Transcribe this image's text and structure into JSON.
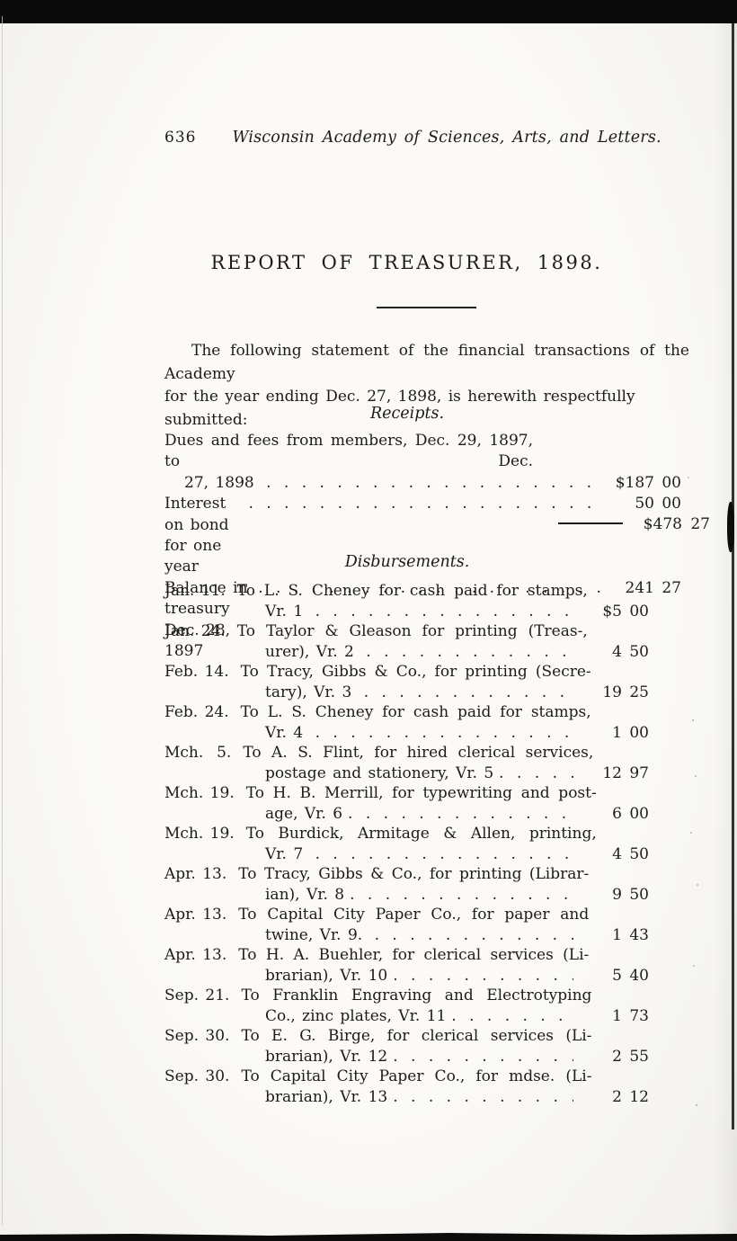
{
  "page_header": {
    "number": "636",
    "running_title": "Wisconsin Academy of Sciences, Arts, and Letters."
  },
  "report": {
    "title": "REPORT OF TREASURER, 1898."
  },
  "intro": {
    "line1": "The following statement of the financial transactions of the Academy",
    "line2": "for the year ending Dec. 27, 1898, is herewith respectfully submitted:"
  },
  "receipts": {
    "heading": "Receipts.",
    "items": [
      {
        "line1": "Dues and fees from members, Dec. 29, 1897, to Dec.",
        "line2": "27, 1898 ",
        "dollars": "$187",
        "cents": "00"
      },
      {
        "line1": "Interest on bond for one year",
        "dollars": "50",
        "cents": "00"
      },
      {
        "line1": "Balance in treasury Dec. 28, 1897",
        "dollars": "241",
        "cents": "27"
      }
    ],
    "total": {
      "dollars": "$478",
      "cents": "27"
    }
  },
  "disbursements": {
    "heading": "Disbursements.",
    "entries": [
      {
        "date": "Jan. 11.",
        "line1": "To L. S. Cheney for cash paid for stamps,",
        "line2": "Vr. 1 ",
        "dollars": "$5",
        "cents": "00"
      },
      {
        "date": "Jan. 24.",
        "line1": "To Taylor & Gleason for printing (Treas-,",
        "line2": "urer), Vr. 2 ",
        "dollars": "4",
        "cents": "50"
      },
      {
        "date": "Feb. 14.",
        "line1": "To Tracy, Gibbs & Co., for printing (Secre-",
        "line2": "tary), Vr. 3 ",
        "dollars": "19",
        "cents": "25"
      },
      {
        "date": "Feb. 24.",
        "line1": "To L. S. Cheney for cash paid for stamps,",
        "line2": "Vr. 4 ",
        "dollars": "1",
        "cents": "00"
      },
      {
        "date": "Mch.  5.",
        "line1": "To A. S. Flint, for hired clerical services,",
        "line2": "postage and stationery, Vr. 5",
        "dollars": "12",
        "cents": "97"
      },
      {
        "date": "Mch. 19.",
        "line1": "To H. B. Merrill, for typewriting and post-",
        "line2": "age, Vr. 6",
        "dollars": "6",
        "cents": "00"
      },
      {
        "date": "Mch. 19.",
        "line1": "To Burdick, Armitage & Allen, printing,",
        "line2": "Vr. 7 ",
        "dollars": "4",
        "cents": "50"
      },
      {
        "date": "Apr. 13.",
        "line1": "To Tracy, Gibbs & Co., for printing (Librar-",
        "line2": "ian), Vr. 8",
        "dollars": "9",
        "cents": "50"
      },
      {
        "date": "Apr. 13.",
        "line1": "To Capital City Paper Co., for paper and",
        "line2": "twine, Vr. 9. ",
        "dollars": "1",
        "cents": "43"
      },
      {
        "date": "Apr. 13.",
        "line1": "To H. A. Buehler, for clerical services (Li-",
        "line2": "brarian), Vr. 10",
        "dollars": "5",
        "cents": "40"
      },
      {
        "date": "Sep. 21.",
        "line1": "To Franklin Engraving and Electrotyping",
        "line2": "Co., zinc plates, Vr. 11",
        "dollars": "1",
        "cents": "73"
      },
      {
        "date": "Sep. 30.",
        "line1": "To E. G. Birge, for clerical services (Li-",
        "line2": "brarian), Vr. 12",
        "dollars": "2",
        "cents": "55"
      },
      {
        "date": "Sep. 30.",
        "line1": "To Capital City Paper Co., for mdse. (Li-",
        "line2": "brarian), Vr. 13",
        "dollars": "2",
        "cents": "12"
      }
    ]
  }
}
